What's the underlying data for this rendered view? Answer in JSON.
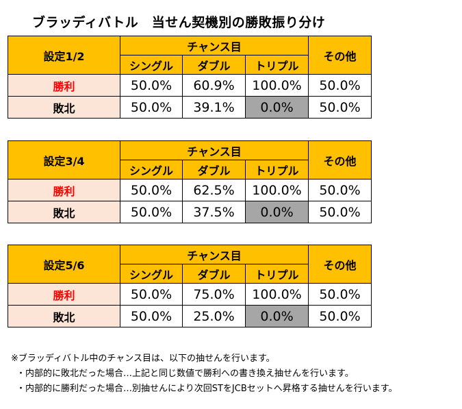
{
  "title": "ブラッディバトル　当せん契機別の勝敗振り分け",
  "headers": {
    "chance": "チャンス目",
    "single": "シングル",
    "double": "ダブル",
    "triple": "トリプル",
    "other": "その他"
  },
  "row_labels": {
    "win": "勝利",
    "lose": "敗北"
  },
  "tables": [
    {
      "setting": "設定1/2",
      "win": {
        "single": "50.0%",
        "double": "60.9%",
        "triple": "100.0%",
        "other": "50.0%"
      },
      "lose": {
        "single": "50.0%",
        "double": "39.1%",
        "triple": "0.0%",
        "other": "50.0%"
      }
    },
    {
      "setting": "設定3/4",
      "win": {
        "single": "50.0%",
        "double": "62.5%",
        "triple": "100.0%",
        "other": "50.0%"
      },
      "lose": {
        "single": "50.0%",
        "double": "37.5%",
        "triple": "0.0%",
        "other": "50.0%"
      }
    },
    {
      "setting": "設定5/6",
      "win": {
        "single": "50.0%",
        "double": "75.0%",
        "triple": "100.0%",
        "other": "50.0%"
      },
      "lose": {
        "single": "50.0%",
        "double": "25.0%",
        "triple": "0.0%",
        "other": "50.0%"
      }
    }
  ],
  "notes": [
    "※ブラッディバトル中のチャンス目は、以下の抽せんを行います。",
    "・内部的に敗北だった場合…上記と同じ数値で勝利への書き換え抽せんを行います。",
    "・内部的に勝利だった場合…別抽せんにより次回STをJCBセットへ昇格する抽せんを行います。"
  ],
  "colors": {
    "header_bg": "#ffc000",
    "label_bg": "#fce4d6",
    "win_text": "#ff0000",
    "zero_cell_bg": "#a6a6a6"
  }
}
